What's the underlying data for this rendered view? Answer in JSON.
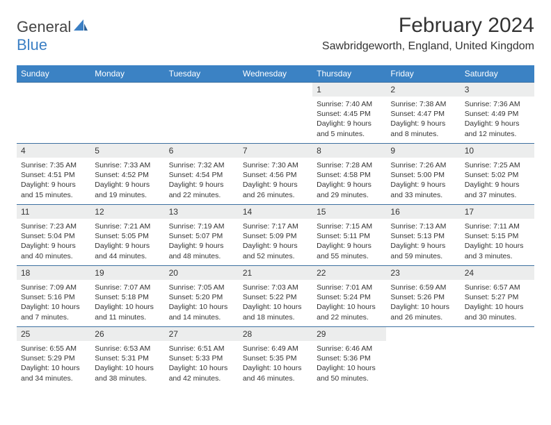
{
  "logo": {
    "part1": "General",
    "part2": "Blue"
  },
  "title": "February 2024",
  "location": "Sawbridgeworth, England, United Kingdom",
  "colors": {
    "header_bg": "#3b82c4",
    "header_text": "#ffffff",
    "daynum_bg": "#eceded",
    "border": "#3b6fa0",
    "logo_blue": "#3b7fc4",
    "text": "#333333"
  },
  "weekdays": [
    "Sunday",
    "Monday",
    "Tuesday",
    "Wednesday",
    "Thursday",
    "Friday",
    "Saturday"
  ],
  "weeks": [
    [
      null,
      null,
      null,
      null,
      {
        "n": "1",
        "sr": "7:40 AM",
        "ss": "4:45 PM",
        "dl": "9 hours and 5 minutes."
      },
      {
        "n": "2",
        "sr": "7:38 AM",
        "ss": "4:47 PM",
        "dl": "9 hours and 8 minutes."
      },
      {
        "n": "3",
        "sr": "7:36 AM",
        "ss": "4:49 PM",
        "dl": "9 hours and 12 minutes."
      }
    ],
    [
      {
        "n": "4",
        "sr": "7:35 AM",
        "ss": "4:51 PM",
        "dl": "9 hours and 15 minutes."
      },
      {
        "n": "5",
        "sr": "7:33 AM",
        "ss": "4:52 PM",
        "dl": "9 hours and 19 minutes."
      },
      {
        "n": "6",
        "sr": "7:32 AM",
        "ss": "4:54 PM",
        "dl": "9 hours and 22 minutes."
      },
      {
        "n": "7",
        "sr": "7:30 AM",
        "ss": "4:56 PM",
        "dl": "9 hours and 26 minutes."
      },
      {
        "n": "8",
        "sr": "7:28 AM",
        "ss": "4:58 PM",
        "dl": "9 hours and 29 minutes."
      },
      {
        "n": "9",
        "sr": "7:26 AM",
        "ss": "5:00 PM",
        "dl": "9 hours and 33 minutes."
      },
      {
        "n": "10",
        "sr": "7:25 AM",
        "ss": "5:02 PM",
        "dl": "9 hours and 37 minutes."
      }
    ],
    [
      {
        "n": "11",
        "sr": "7:23 AM",
        "ss": "5:04 PM",
        "dl": "9 hours and 40 minutes."
      },
      {
        "n": "12",
        "sr": "7:21 AM",
        "ss": "5:05 PM",
        "dl": "9 hours and 44 minutes."
      },
      {
        "n": "13",
        "sr": "7:19 AM",
        "ss": "5:07 PM",
        "dl": "9 hours and 48 minutes."
      },
      {
        "n": "14",
        "sr": "7:17 AM",
        "ss": "5:09 PM",
        "dl": "9 hours and 52 minutes."
      },
      {
        "n": "15",
        "sr": "7:15 AM",
        "ss": "5:11 PM",
        "dl": "9 hours and 55 minutes."
      },
      {
        "n": "16",
        "sr": "7:13 AM",
        "ss": "5:13 PM",
        "dl": "9 hours and 59 minutes."
      },
      {
        "n": "17",
        "sr": "7:11 AM",
        "ss": "5:15 PM",
        "dl": "10 hours and 3 minutes."
      }
    ],
    [
      {
        "n": "18",
        "sr": "7:09 AM",
        "ss": "5:16 PM",
        "dl": "10 hours and 7 minutes."
      },
      {
        "n": "19",
        "sr": "7:07 AM",
        "ss": "5:18 PM",
        "dl": "10 hours and 11 minutes."
      },
      {
        "n": "20",
        "sr": "7:05 AM",
        "ss": "5:20 PM",
        "dl": "10 hours and 14 minutes."
      },
      {
        "n": "21",
        "sr": "7:03 AM",
        "ss": "5:22 PM",
        "dl": "10 hours and 18 minutes."
      },
      {
        "n": "22",
        "sr": "7:01 AM",
        "ss": "5:24 PM",
        "dl": "10 hours and 22 minutes."
      },
      {
        "n": "23",
        "sr": "6:59 AM",
        "ss": "5:26 PM",
        "dl": "10 hours and 26 minutes."
      },
      {
        "n": "24",
        "sr": "6:57 AM",
        "ss": "5:27 PM",
        "dl": "10 hours and 30 minutes."
      }
    ],
    [
      {
        "n": "25",
        "sr": "6:55 AM",
        "ss": "5:29 PM",
        "dl": "10 hours and 34 minutes."
      },
      {
        "n": "26",
        "sr": "6:53 AM",
        "ss": "5:31 PM",
        "dl": "10 hours and 38 minutes."
      },
      {
        "n": "27",
        "sr": "6:51 AM",
        "ss": "5:33 PM",
        "dl": "10 hours and 42 minutes."
      },
      {
        "n": "28",
        "sr": "6:49 AM",
        "ss": "5:35 PM",
        "dl": "10 hours and 46 minutes."
      },
      {
        "n": "29",
        "sr": "6:46 AM",
        "ss": "5:36 PM",
        "dl": "10 hours and 50 minutes."
      },
      null,
      null
    ]
  ],
  "labels": {
    "sunrise": "Sunrise:",
    "sunset": "Sunset:",
    "daylight": "Daylight:"
  }
}
